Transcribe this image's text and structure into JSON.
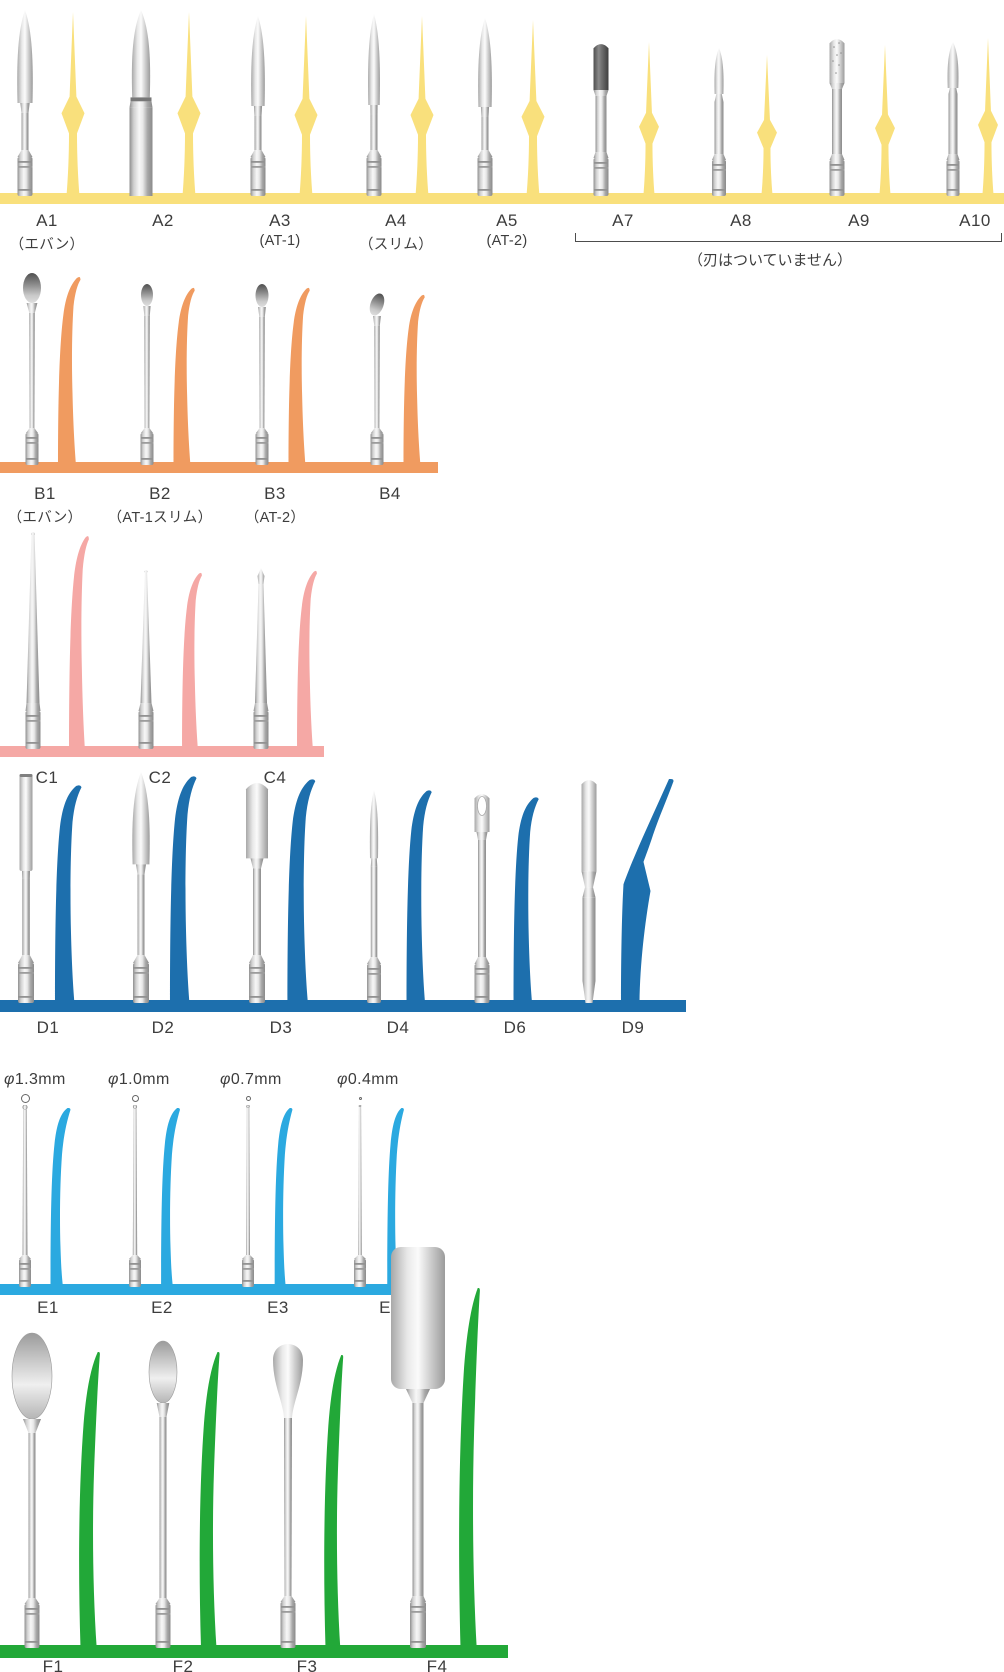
{
  "page": {
    "background": "#ffffff"
  },
  "groups": [
    {
      "id": "A",
      "color": "#F9E07C",
      "items": [
        {
          "label": "A1",
          "sublabel": "（エバン）"
        },
        {
          "label": "A2"
        },
        {
          "label": "A3",
          "sublabel": "(AT-1)"
        },
        {
          "label": "A4",
          "sublabel": "（スリム）"
        },
        {
          "label": "A5",
          "sublabel": "(AT-2)"
        },
        {
          "label": "A7"
        },
        {
          "label": "A8"
        },
        {
          "label": "A9"
        },
        {
          "label": "A10"
        }
      ],
      "note": "（刃はついていません）",
      "note_applies_to": "A7–A10"
    },
    {
      "id": "B",
      "color": "#F09B60",
      "items": [
        {
          "label": "B1",
          "sublabel": "（エバン）"
        },
        {
          "label": "B2",
          "sublabel": "（AT-1スリム）"
        },
        {
          "label": "B3",
          "sublabel": "（AT-2）"
        },
        {
          "label": "B4"
        }
      ]
    },
    {
      "id": "C",
      "color": "#F5A8A5",
      "items": [
        {
          "label": "C1"
        },
        {
          "label": "C2"
        },
        {
          "label": "C4"
        }
      ]
    },
    {
      "id": "D",
      "color": "#1D6FAD",
      "items": [
        {
          "label": "D1"
        },
        {
          "label": "D2"
        },
        {
          "label": "D3"
        },
        {
          "label": "D4"
        },
        {
          "label": "D6"
        },
        {
          "label": "D9"
        }
      ]
    },
    {
      "id": "E",
      "color": "#2BA9E0",
      "items": [
        {
          "label": "E1",
          "diameter": "φ1.3mm"
        },
        {
          "label": "E2",
          "diameter": "φ1.0mm"
        },
        {
          "label": "E3",
          "diameter": "φ0.7mm"
        },
        {
          "label": "E4",
          "diameter": "φ0.4mm"
        }
      ]
    },
    {
      "id": "F",
      "color": "#22A838",
      "items": [
        {
          "label": "F1"
        },
        {
          "label": "F2"
        },
        {
          "label": "F3"
        },
        {
          "label": "F4"
        }
      ]
    }
  ]
}
